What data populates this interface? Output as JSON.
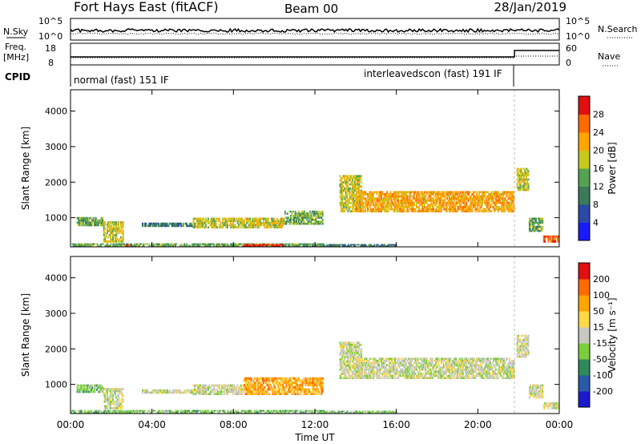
{
  "header": {
    "title": "Fort Hays East (fitACF)",
    "beam": "Beam 00",
    "date": "28/Jan/2019"
  },
  "top_panels": {
    "noise": {
      "left_label": "N.Sky",
      "right_label": "N.Search",
      "yticks": [
        "10^5",
        "10^0"
      ],
      "yticks_right": [
        "10^5",
        "10^0"
      ]
    },
    "freq": {
      "left_label_line1": "Freq.",
      "left_label_line2": "[MHz]",
      "right_label": "Nave",
      "yticks": [
        "18",
        "8"
      ],
      "yticks_right": [
        "60",
        "0"
      ]
    },
    "cpid": {
      "label": "CPID",
      "modes": [
        {
          "label": "normal (fast) 151 IF",
          "start_hour": 0,
          "end_hour": 21.8
        },
        {
          "label": "interleavedscon (fast) 191 IF",
          "start_hour": 21.8,
          "end_hour": 24
        }
      ]
    }
  },
  "chart_data": [
    {
      "type": "heatmap",
      "name": "power",
      "ylabel": "Slant Range [km]",
      "xlabel": "",
      "ylim": [
        180,
        4600
      ],
      "xlim": [
        0,
        24
      ],
      "yticks": [
        1000,
        2000,
        3000,
        4000
      ],
      "colorbar": {
        "label": "Power [dB]",
        "ticks": [
          "4",
          "8",
          "12",
          "16",
          "20",
          "24",
          "28"
        ],
        "colors": [
          "#1a1aff",
          "#2a4aa8",
          "#3a7a5a",
          "#54a354",
          "#c8c81e",
          "#ffa500",
          "#ff6a00",
          "#e01010"
        ]
      },
      "echo_regions": [
        {
          "t0": 0.3,
          "t1": 1.6,
          "r0": 760,
          "r1": 1020,
          "level": 3
        },
        {
          "t0": 1.6,
          "t1": 2.6,
          "r0": 300,
          "r1": 900,
          "level": 4
        },
        {
          "t0": 2.5,
          "t1": 3.0,
          "r0": 180,
          "r1": 260,
          "level": 7
        },
        {
          "t0": 3.5,
          "t1": 6.5,
          "r0": 740,
          "r1": 860,
          "level": 2
        },
        {
          "t0": 6.0,
          "t1": 10.5,
          "r0": 700,
          "r1": 1000,
          "level": 4
        },
        {
          "t0": 10.5,
          "t1": 12.4,
          "r0": 800,
          "r1": 1200,
          "level": 3
        },
        {
          "t0": 0.0,
          "t1": 12.5,
          "r0": 190,
          "r1": 280,
          "level": 3
        },
        {
          "t0": 8.5,
          "t1": 10.5,
          "r0": 190,
          "r1": 260,
          "level": 7
        },
        {
          "t0": 12.5,
          "t1": 16.0,
          "r0": 180,
          "r1": 260,
          "level": 2
        },
        {
          "t0": 13.2,
          "t1": 14.3,
          "r0": 1150,
          "r1": 2200,
          "level": 4
        },
        {
          "t0": 14.0,
          "t1": 21.8,
          "r0": 1150,
          "r1": 1750,
          "level": 5
        },
        {
          "t0": 21.9,
          "t1": 22.5,
          "r0": 1750,
          "r1": 2400,
          "level": 4
        },
        {
          "t0": 22.5,
          "t1": 23.2,
          "r0": 600,
          "r1": 1000,
          "level": 3
        },
        {
          "t0": 23.2,
          "t1": 24.0,
          "r0": 300,
          "r1": 500,
          "level": 6
        }
      ]
    },
    {
      "type": "heatmap",
      "name": "velocity",
      "ylabel": "Slant Range [km]",
      "xlabel": "Time UT",
      "ylim": [
        180,
        4600
      ],
      "xlim": [
        0,
        24
      ],
      "yticks": [
        1000,
        2000,
        3000,
        4000
      ],
      "xticks": [
        "00:00",
        "04:00",
        "08:00",
        "12:00",
        "16:00",
        "20:00",
        "00:00"
      ],
      "colorbar": {
        "label": "Velocity [m s^-1]",
        "ticks": [
          "200",
          "100",
          "50",
          "15",
          "-15",
          "-50",
          "-100",
          "-200"
        ],
        "colors": [
          "#1a1acc",
          "#2a5aa8",
          "#2e8a5a",
          "#7ccf3c",
          "#c8c8c0",
          "#ffd84a",
          "#ffa500",
          "#ff6a00",
          "#e01010"
        ]
      },
      "echo_regions": [
        {
          "t0": 0.3,
          "t1": 1.6,
          "r0": 760,
          "r1": 1000,
          "level": 3
        },
        {
          "t0": 1.6,
          "t1": 2.6,
          "r0": 300,
          "r1": 900,
          "level": 4
        },
        {
          "t0": 2.5,
          "t1": 3.0,
          "r0": 180,
          "r1": 260,
          "level": 3
        },
        {
          "t0": 3.5,
          "t1": 6.5,
          "r0": 740,
          "r1": 860,
          "level": 4
        },
        {
          "t0": 6.0,
          "t1": 8.5,
          "r0": 700,
          "r1": 1000,
          "level": 4
        },
        {
          "t0": 8.5,
          "t1": 12.4,
          "r0": 700,
          "r1": 1200,
          "level": 6
        },
        {
          "t0": 0.0,
          "t1": 12.5,
          "r0": 190,
          "r1": 280,
          "level": 3
        },
        {
          "t0": 12.5,
          "t1": 16.0,
          "r0": 180,
          "r1": 260,
          "level": 3
        },
        {
          "t0": 13.2,
          "t1": 14.3,
          "r0": 1150,
          "r1": 2200,
          "level": 4
        },
        {
          "t0": 14.0,
          "t1": 21.8,
          "r0": 1150,
          "r1": 1750,
          "level": 4
        },
        {
          "t0": 21.9,
          "t1": 22.5,
          "r0": 1750,
          "r1": 2400,
          "level": 4
        },
        {
          "t0": 22.5,
          "t1": 23.2,
          "r0": 600,
          "r1": 1000,
          "level": 4
        },
        {
          "t0": 23.2,
          "t1": 24.0,
          "r0": 300,
          "r1": 500,
          "level": 4
        }
      ]
    }
  ]
}
